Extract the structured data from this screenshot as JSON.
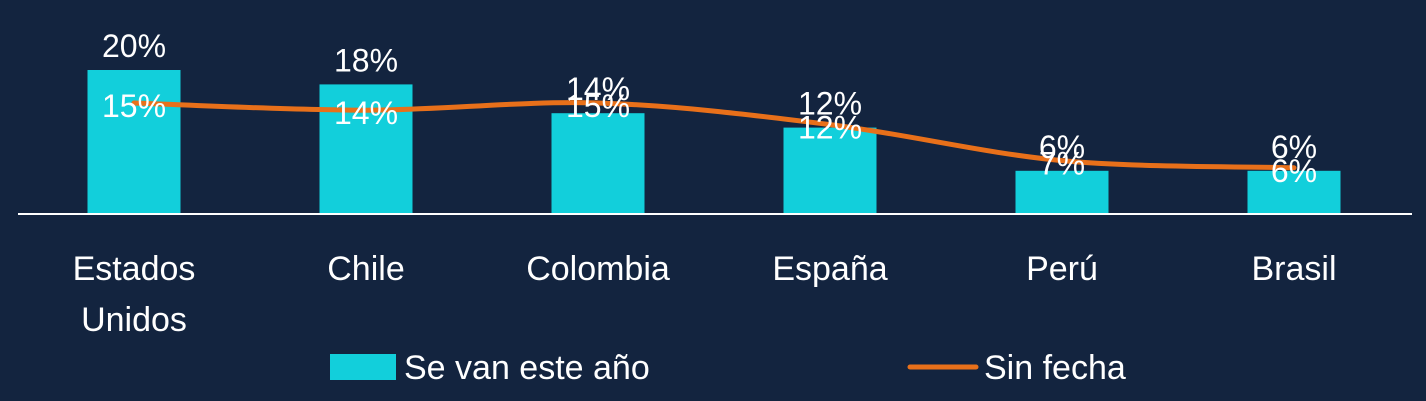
{
  "colors": {
    "background": "#13243f",
    "bar": "#12cfdb",
    "line": "#e8701a",
    "text": "#ffffff",
    "axis": "#ffffff"
  },
  "chart_data": {
    "type": "bar",
    "categories": [
      [
        "Estados",
        "Unidos"
      ],
      [
        "Chile"
      ],
      [
        "Colombia"
      ],
      [
        "España"
      ],
      [
        "Perú"
      ],
      [
        "Brasil"
      ]
    ],
    "series": [
      {
        "name": "Se van este año",
        "type": "bar",
        "values": [
          20,
          18,
          14,
          12,
          6,
          6
        ],
        "labels": [
          "20%",
          "18%",
          "14%",
          "12%",
          "6%",
          "6%"
        ]
      },
      {
        "name": "Sin fecha",
        "type": "line",
        "values": [
          15,
          14,
          15,
          12,
          7,
          6
        ],
        "labels": [
          "15%",
          "14%",
          "15%",
          "12%",
          "7%",
          "6%"
        ]
      }
    ],
    "ylim": [
      0,
      20
    ],
    "grid": false,
    "legend": "bottom"
  }
}
